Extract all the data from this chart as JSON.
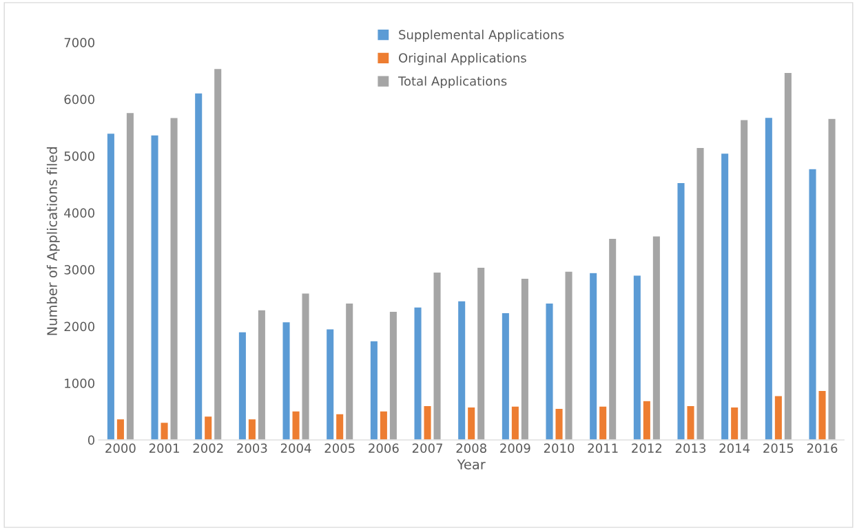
{
  "chart_data": {
    "type": "bar",
    "xlabel": "Year",
    "ylabel": "Number of Applications filed",
    "categories": [
      "2000",
      "2001",
      "2002",
      "2003",
      "2004",
      "2005",
      "2006",
      "2007",
      "2008",
      "2009",
      "2010",
      "2011",
      "2012",
      "2013",
      "2014",
      "2015",
      "2016"
    ],
    "series": [
      {
        "name": "Supplemental Applications",
        "color": "#5b9bd5",
        "values": [
          5400,
          5370,
          6110,
          1905,
          2080,
          1955,
          1745,
          2340,
          2450,
          2240,
          2410,
          2945,
          2900,
          4530,
          5050,
          5680,
          4775
        ]
      },
      {
        "name": "Original Applications",
        "color": "#ed7d31",
        "values": [
          370,
          310,
          420,
          370,
          510,
          460,
          510,
          605,
          580,
          595,
          555,
          595,
          690,
          605,
          580,
          780,
          870
        ]
      },
      {
        "name": "Total Applications",
        "color": "#a5a5a5",
        "values": [
          5765,
          5675,
          6540,
          2290,
          2585,
          2410,
          2265,
          2955,
          3040,
          2845,
          2970,
          3550,
          3590,
          5150,
          5640,
          6470,
          5660
        ]
      }
    ],
    "ylim": [
      0,
      7000
    ],
    "yticks": [
      0,
      1000,
      2000,
      3000,
      4000,
      5000,
      6000,
      7000
    ],
    "legend": "top"
  }
}
